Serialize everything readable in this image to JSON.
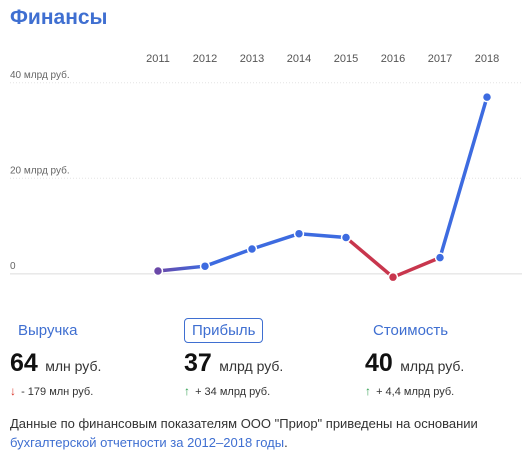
{
  "header": {
    "title": "Финансы"
  },
  "chart_data": {
    "type": "line",
    "x": [
      "2011",
      "2012",
      "2013",
      "2014",
      "2015",
      "2016",
      "2017",
      "2018"
    ],
    "values": [
      0.6,
      1.6,
      5.2,
      8.4,
      7.6,
      -0.7,
      3.4,
      37
    ],
    "ylim": [
      -1.5,
      41
    ],
    "yticks": [
      {
        "value": 40,
        "label": "40 млрд руб."
      },
      {
        "value": 20,
        "label": "20 млрд руб."
      },
      {
        "value": 0,
        "label": "0"
      }
    ],
    "grid": true,
    "colors": {
      "line": "#3d6be0",
      "negative": "#c8364d",
      "start": "#6a48a8",
      "point_fill": "#3d6be0",
      "point_stroke": "#ffffff"
    }
  },
  "metrics": [
    {
      "label": "Выручка",
      "value": "64",
      "unit": "млн руб.",
      "direction": "down",
      "arrow": "↓",
      "change": "- 179 млн руб.",
      "arrow_color": "#d93025",
      "active": false
    },
    {
      "label": "Прибыль",
      "value": "37",
      "unit": "млрд руб.",
      "direction": "up",
      "arrow": "↑",
      "change": "+ 34 млрд руб.",
      "arrow_color": "#2e9e4f",
      "active": true
    },
    {
      "label": "Стоимость",
      "value": "40",
      "unit": "млрд руб.",
      "direction": "up",
      "arrow": "↑",
      "change": "+ 4,4 млрд руб.",
      "arrow_color": "#2e9e4f",
      "active": false
    }
  ],
  "note": {
    "text": "Данные по финансовым показателям ООО \"Приор\" приведены на основании ",
    "link": "бухгалтерской отчетности за 2012–2018 годы",
    "end": "."
  }
}
